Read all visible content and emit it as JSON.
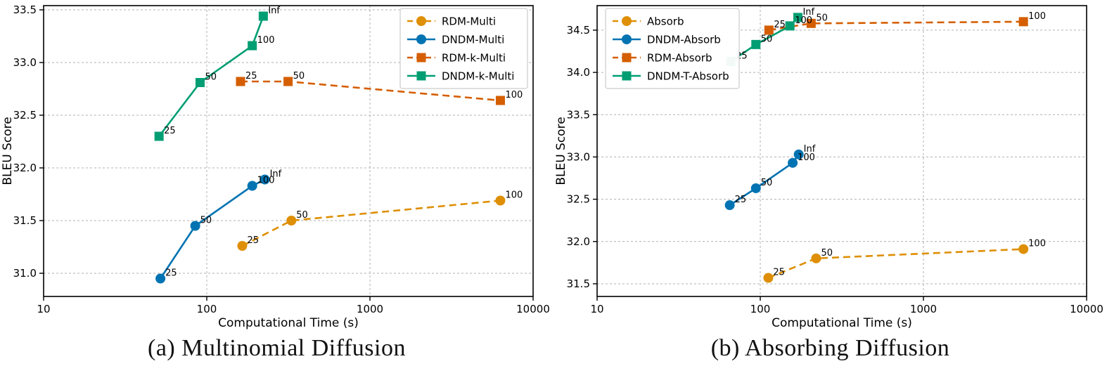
{
  "chart_data": [
    {
      "type": "line",
      "caption": "(a) Multinomial Diffusion",
      "xlabel": "Computational Time (s)",
      "ylabel": "BLEU Score",
      "xscale": "log",
      "xlim": [
        10,
        10000
      ],
      "ylim": [
        30.78,
        33.54
      ],
      "xticks": [
        10,
        100,
        1000,
        10000
      ],
      "xtick_labels": [
        "10",
        "100",
        "1000",
        "10000"
      ],
      "yticks": [
        31.0,
        31.5,
        32.0,
        32.5,
        33.0,
        33.5
      ],
      "ytick_labels": [
        "31.0",
        "31.5",
        "32.0",
        "32.5",
        "33.0",
        "33.5"
      ],
      "grid": true,
      "legend_position": "upper-right",
      "series": [
        {
          "name": "RDM-Multi",
          "color": "#de8f05",
          "marker": "circle",
          "line_style": "dashed",
          "points": [
            {
              "x": 165,
              "y": 31.26,
              "label": "25"
            },
            {
              "x": 330,
              "y": 31.5,
              "label": "50"
            },
            {
              "x": 6300,
              "y": 31.69,
              "label": "100"
            }
          ]
        },
        {
          "name": "DNDM-Multi",
          "color": "#0173b2",
          "marker": "circle",
          "line_style": "solid",
          "points": [
            {
              "x": 52,
              "y": 30.95,
              "label": "25"
            },
            {
              "x": 85,
              "y": 31.45,
              "label": "50"
            },
            {
              "x": 190,
              "y": 31.83,
              "label": "100"
            },
            {
              "x": 227,
              "y": 31.89,
              "label": "Inf"
            }
          ]
        },
        {
          "name": "RDM-k-Multi",
          "color": "#d55e00",
          "marker": "square",
          "line_style": "dashed",
          "points": [
            {
              "x": 161,
              "y": 32.82,
              "label": "25"
            },
            {
              "x": 315,
              "y": 32.82,
              "label": "50"
            },
            {
              "x": 6300,
              "y": 32.64,
              "label": "100"
            }
          ]
        },
        {
          "name": "DNDM-k-Multi",
          "color": "#029e73",
          "marker": "square",
          "line_style": "solid",
          "points": [
            {
              "x": 51,
              "y": 32.3,
              "label": "25"
            },
            {
              "x": 91,
              "y": 32.81,
              "label": "50"
            },
            {
              "x": 190,
              "y": 33.16,
              "label": "100"
            },
            {
              "x": 222,
              "y": 33.44,
              "label": "Inf"
            }
          ]
        }
      ]
    },
    {
      "type": "line",
      "caption": "(b) Absorbing Diffusion",
      "xlabel": "Computational Time (s)",
      "ylabel": "BLEU Score",
      "xscale": "log",
      "xlim": [
        10,
        10000
      ],
      "ylim": [
        31.35,
        34.79
      ],
      "xticks": [
        10,
        100,
        1000,
        10000
      ],
      "xtick_labels": [
        "10",
        "100",
        "1000",
        "10000"
      ],
      "yticks": [
        31.5,
        32.0,
        32.5,
        33.0,
        33.5,
        34.0,
        34.5
      ],
      "ytick_labels": [
        "31.5",
        "32.0",
        "32.5",
        "33.0",
        "33.5",
        "34.0",
        "34.5"
      ],
      "grid": true,
      "legend_position": "upper-left",
      "series": [
        {
          "name": "Absorb",
          "color": "#de8f05",
          "marker": "circle",
          "line_style": "dashed",
          "points": [
            {
              "x": 112,
              "y": 31.57,
              "label": "25"
            },
            {
              "x": 220,
              "y": 31.8,
              "label": "50"
            },
            {
              "x": 4100,
              "y": 31.91,
              "label": "100"
            }
          ]
        },
        {
          "name": "DNDM-Absorb",
          "color": "#0173b2",
          "marker": "circle",
          "line_style": "solid",
          "points": [
            {
              "x": 65,
              "y": 32.43,
              "label": "25"
            },
            {
              "x": 94,
              "y": 32.63,
              "label": "50"
            },
            {
              "x": 158,
              "y": 32.93,
              "label": "100"
            },
            {
              "x": 172,
              "y": 33.03,
              "label": "Inf"
            }
          ]
        },
        {
          "name": "RDM-Absorb",
          "color": "#d55e00",
          "marker": "square",
          "line_style": "dashed",
          "points": [
            {
              "x": 113,
              "y": 34.5,
              "label": "25"
            },
            {
              "x": 205,
              "y": 34.58,
              "label": "50"
            },
            {
              "x": 4100,
              "y": 34.6,
              "label": "100"
            }
          ]
        },
        {
          "name": "DNDM-T-Absorb",
          "color": "#029e73",
          "marker": "square",
          "line_style": "solid",
          "points": [
            {
              "x": 66,
              "y": 34.13,
              "label": "25"
            },
            {
              "x": 94,
              "y": 34.33,
              "label": "50"
            },
            {
              "x": 152,
              "y": 34.55,
              "label": "100"
            },
            {
              "x": 170,
              "y": 34.65,
              "label": "Inf"
            }
          ]
        }
      ]
    }
  ],
  "style_colors": {
    "grid": "#b0b0b0",
    "spine": "#000000",
    "text": "#000000",
    "legend_border": "#cccccc",
    "legend_bg": "#ffffff"
  }
}
